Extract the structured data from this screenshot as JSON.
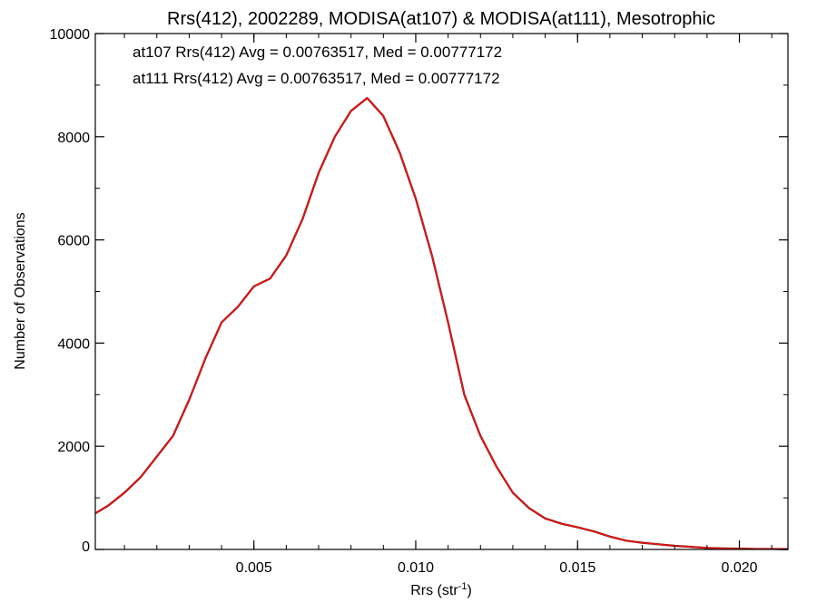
{
  "chart_data": {
    "type": "line",
    "title": "Rrs(412), 2002289, MODISA(at107) & MODISA(at111), Mesotrophic",
    "xlabel": "Rrs (str",
    "xlabel_sup": "-1",
    "xlabel_close": ")",
    "ylabel": "Number of Observations",
    "xlim": [
      0.0001,
      0.0215
    ],
    "ylim": [
      0,
      10000
    ],
    "x_ticks": [
      0.005,
      0.01,
      0.015,
      0.02
    ],
    "x_tick_labels": [
      "0.005",
      "0.010",
      "0.015",
      "0.020"
    ],
    "y_ticks": [
      0,
      2000,
      4000,
      6000,
      8000,
      10000
    ],
    "y_tick_labels": [
      "0",
      "2000",
      "4000",
      "6000",
      "8000",
      "10000"
    ],
    "grid": false,
    "annotations": [
      {
        "text": "at107 Rrs(412) Avg = 0.00763517, Med = 0.00777172",
        "color": "#000000"
      },
      {
        "text": "at111 Rrs(412) Avg = 0.00763517, Med = 0.00777172",
        "color": "#ee1111"
      }
    ],
    "series": [
      {
        "color": "#000000",
        "x": [
          0.0001,
          0.0005,
          0.001,
          0.0015,
          0.002,
          0.0025,
          0.003,
          0.0035,
          0.004,
          0.0045,
          0.005,
          0.0055,
          0.006,
          0.0065,
          0.007,
          0.0075,
          0.008,
          0.0085,
          0.009,
          0.0095,
          0.01,
          0.0105,
          0.011,
          0.0115,
          0.012,
          0.0125,
          0.013,
          0.0135,
          0.014,
          0.0145,
          0.015,
          0.0155,
          0.016,
          0.0165,
          0.017,
          0.0175,
          0.018,
          0.0185,
          0.019,
          0.0195,
          0.02,
          0.0205,
          0.021,
          0.0215
        ],
        "y": [
          700,
          850,
          1100,
          1400,
          1800,
          2200,
          2900,
          3700,
          4400,
          4700,
          5100,
          5250,
          5700,
          6400,
          7300,
          8000,
          8500,
          8750,
          8400,
          7700,
          6800,
          5700,
          4400,
          3000,
          2200,
          1600,
          1100,
          800,
          600,
          500,
          430,
          350,
          250,
          170,
          130,
          100,
          70,
          50,
          30,
          20,
          15,
          10,
          10,
          5
        ]
      },
      {
        "color": "#ee1111",
        "x": [
          0.0001,
          0.0005,
          0.001,
          0.0015,
          0.002,
          0.0025,
          0.003,
          0.0035,
          0.004,
          0.0045,
          0.005,
          0.0055,
          0.006,
          0.0065,
          0.007,
          0.0075,
          0.008,
          0.0085,
          0.009,
          0.0095,
          0.01,
          0.0105,
          0.011,
          0.0115,
          0.012,
          0.0125,
          0.013,
          0.0135,
          0.014,
          0.0145,
          0.015,
          0.0155,
          0.016,
          0.0165,
          0.017,
          0.0175,
          0.018,
          0.0185,
          0.019,
          0.0195,
          0.02,
          0.0205,
          0.021,
          0.0215
        ],
        "y": [
          700,
          850,
          1100,
          1400,
          1800,
          2200,
          2900,
          3700,
          4400,
          4700,
          5100,
          5250,
          5700,
          6400,
          7300,
          8000,
          8500,
          8750,
          8400,
          7700,
          6800,
          5700,
          4400,
          3000,
          2200,
          1600,
          1100,
          800,
          600,
          500,
          430,
          350,
          250,
          170,
          130,
          100,
          70,
          50,
          30,
          20,
          15,
          10,
          10,
          5
        ]
      }
    ]
  }
}
